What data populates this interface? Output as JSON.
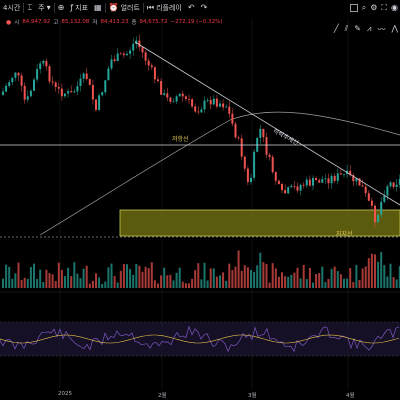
{
  "toolbar": {
    "timeframe": "4시간",
    "chart_type": "주",
    "indicators": "지표",
    "alert": "얼러트",
    "replay": "리플레이"
  },
  "ohlc": {
    "open_label": "시",
    "open": "84,947.92",
    "high_label": "고",
    "high": "85,132.08",
    "low_label": "저",
    "low": "84,413.23",
    "close_label": "종",
    "close": "84,675.72",
    "change": "−272.19 (−0.32%)"
  },
  "annotations": {
    "resistance": "저항선",
    "downtrend": "하락추세선",
    "support": "지지선"
  },
  "xaxis": {
    "labels": [
      "2025",
      "2월",
      "3월",
      "4월"
    ]
  },
  "colors": {
    "up": "#26a69a",
    "down": "#ef5350",
    "support_zone": "#6b6b10",
    "rsi": "#7e57c2",
    "rsi_ma": "#e6c34a"
  }
}
